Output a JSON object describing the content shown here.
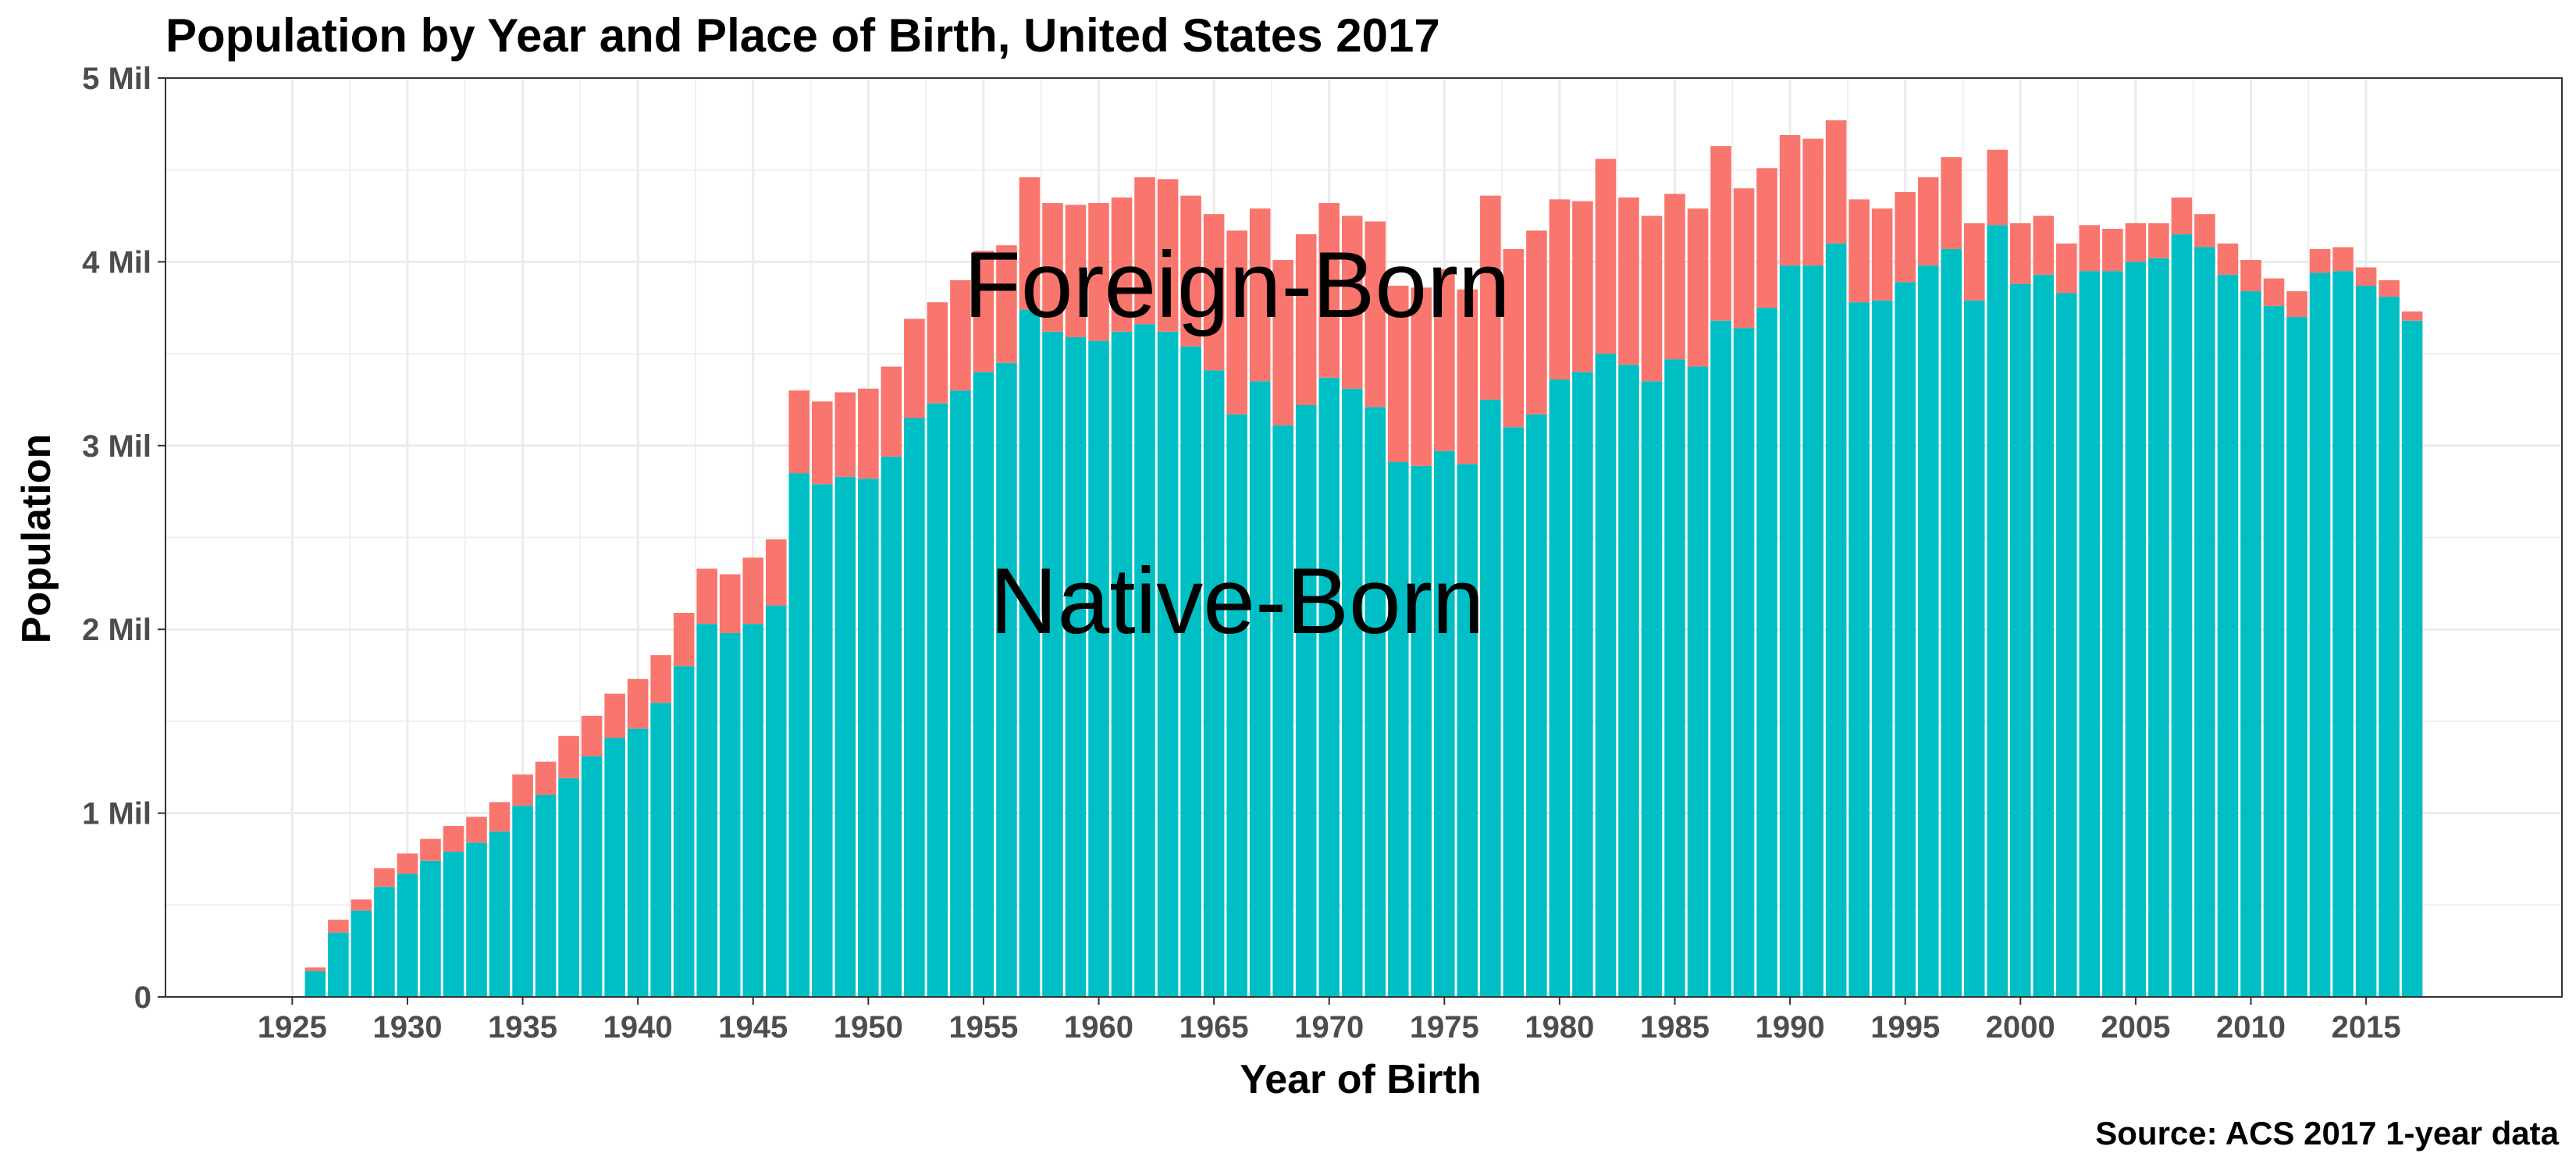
{
  "chart_data": {
    "type": "bar",
    "stacked": true,
    "title": "Population by Year and Place of Birth, United States 2017",
    "xlabel": "Year of Birth",
    "ylabel": "Population",
    "caption": "Source: ACS 2017 1-year data",
    "x_range": [
      1919.5,
      2023.5
    ],
    "ylim": [
      0,
      5000000
    ],
    "x_ticks": [
      1925,
      1930,
      1935,
      1940,
      1945,
      1950,
      1955,
      1960,
      1965,
      1970,
      1975,
      1980,
      1985,
      1990,
      1995,
      2000,
      2005,
      2010,
      2015
    ],
    "y_ticks": [
      0,
      1000000,
      2000000,
      3000000,
      4000000,
      5000000
    ],
    "y_tick_labels": [
      "0",
      "1 Mil",
      "2 Mil",
      "3 Mil",
      "4 Mil",
      "5 Mil"
    ],
    "grid": true,
    "colors": {
      "native": "#00BFC4",
      "foreign": "#F8766D"
    },
    "annotations": [
      {
        "text": "Foreign-Born",
        "x": 1966,
        "y": 3700000
      },
      {
        "text": "Native-Born",
        "x": 1966,
        "y": 1980000
      }
    ],
    "years": [
      1926,
      1927,
      1928,
      1929,
      1930,
      1931,
      1932,
      1933,
      1934,
      1935,
      1936,
      1937,
      1938,
      1939,
      1940,
      1941,
      1942,
      1943,
      1944,
      1945,
      1946,
      1947,
      1948,
      1949,
      1950,
      1951,
      1952,
      1953,
      1954,
      1955,
      1956,
      1957,
      1958,
      1959,
      1960,
      1961,
      1962,
      1963,
      1964,
      1965,
      1966,
      1967,
      1968,
      1969,
      1970,
      1971,
      1972,
      1973,
      1974,
      1975,
      1976,
      1977,
      1978,
      1979,
      1980,
      1981,
      1982,
      1983,
      1984,
      1985,
      1986,
      1987,
      1988,
      1989,
      1990,
      1991,
      1992,
      1993,
      1994,
      1995,
      1996,
      1997,
      1998,
      1999,
      2000,
      2001,
      2002,
      2003,
      2004,
      2005,
      2006,
      2007,
      2008,
      2009,
      2010,
      2011,
      2012,
      2013,
      2014,
      2015,
      2016,
      2017
    ],
    "series": [
      {
        "name": "Native-Born",
        "key": "native",
        "values": [
          140000,
          350000,
          470000,
          600000,
          670000,
          740000,
          790000,
          840000,
          900000,
          1040000,
          1100000,
          1190000,
          1310000,
          1410000,
          1460000,
          1600000,
          1800000,
          2030000,
          1980000,
          2030000,
          2130000,
          2850000,
          2790000,
          2830000,
          2820000,
          2940000,
          3150000,
          3230000,
          3300000,
          3400000,
          3450000,
          3740000,
          3620000,
          3590000,
          3570000,
          3620000,
          3660000,
          3620000,
          3540000,
          3410000,
          3170000,
          3350000,
          3110000,
          3220000,
          3370000,
          3310000,
          3210000,
          2910000,
          2890000,
          2970000,
          2900000,
          3250000,
          3100000,
          3170000,
          3360000,
          3400000,
          3500000,
          3440000,
          3350000,
          3470000,
          3430000,
          3680000,
          3640000,
          3750000,
          3980000,
          3980000,
          4100000,
          3780000,
          3790000,
          3890000,
          3980000,
          4070000,
          3790000,
          4200000,
          3880000,
          3930000,
          3830000,
          3950000,
          3950000,
          4000000,
          4020000,
          4150000,
          4080000,
          3930000,
          3840000,
          3760000,
          3700000,
          3940000,
          3950000,
          3870000,
          3810000,
          3680000
        ]
      },
      {
        "name": "Foreign-Born",
        "key": "foreign",
        "values": [
          20000,
          70000,
          60000,
          100000,
          110000,
          120000,
          140000,
          140000,
          160000,
          170000,
          180000,
          230000,
          220000,
          240000,
          270000,
          260000,
          290000,
          300000,
          320000,
          360000,
          360000,
          450000,
          450000,
          460000,
          490000,
          490000,
          540000,
          550000,
          600000,
          660000,
          640000,
          720000,
          700000,
          720000,
          750000,
          730000,
          800000,
          830000,
          820000,
          850000,
          1000000,
          940000,
          900000,
          930000,
          950000,
          940000,
          1010000,
          960000,
          970000,
          990000,
          950000,
          1110000,
          970000,
          1000000,
          980000,
          930000,
          1060000,
          910000,
          900000,
          900000,
          860000,
          950000,
          760000,
          760000,
          710000,
          690000,
          670000,
          560000,
          500000,
          490000,
          480000,
          500000,
          420000,
          410000,
          330000,
          320000,
          270000,
          250000,
          230000,
          210000,
          190000,
          200000,
          180000,
          170000,
          170000,
          150000,
          140000,
          130000,
          130000,
          100000,
          90000,
          50000
        ]
      }
    ]
  }
}
